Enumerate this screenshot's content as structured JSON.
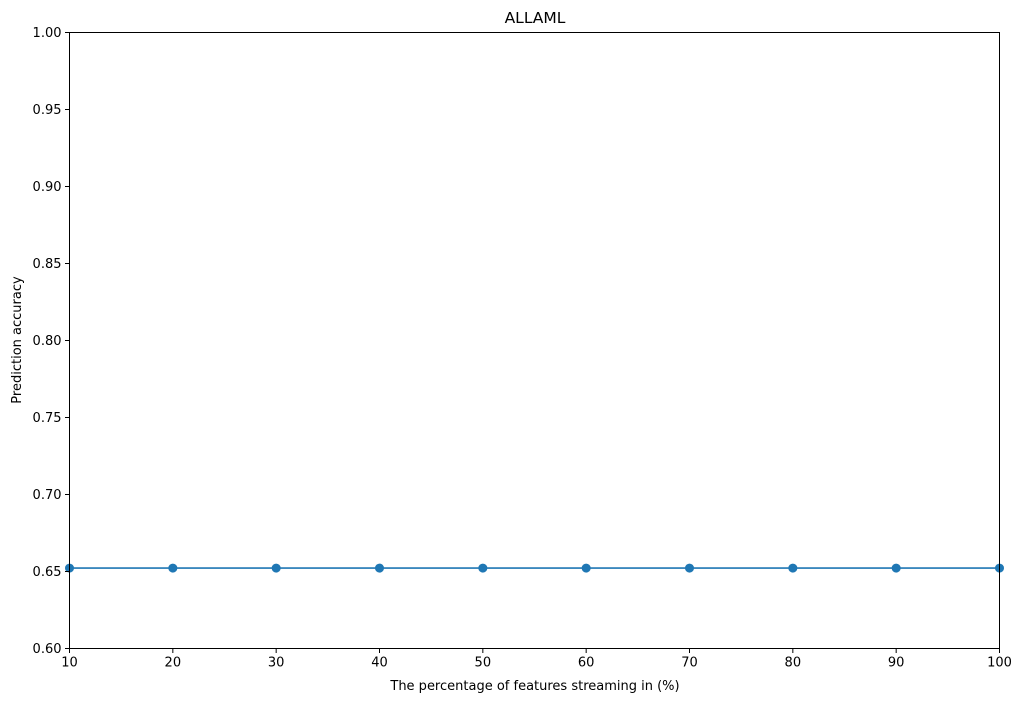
{
  "chart_data": {
    "type": "line",
    "title": "ALLAML",
    "xlabel": "The percentage of features streaming in (%)",
    "ylabel": "Prediction accuracy",
    "x": [
      10,
      20,
      30,
      40,
      50,
      60,
      70,
      80,
      90,
      100
    ],
    "series": [
      {
        "values": [
          0.6522,
          0.6522,
          0.6522,
          0.6522,
          0.6522,
          0.6522,
          0.6522,
          0.6522,
          0.6522,
          0.6522
        ],
        "color": "#1f77b4",
        "marker": "circle"
      }
    ],
    "xlim": [
      10,
      100
    ],
    "ylim": [
      0.6,
      1.0
    ],
    "xticks": [
      10,
      20,
      30,
      40,
      50,
      60,
      70,
      80,
      90,
      100
    ],
    "yticks": [
      "0.60",
      "0.65",
      "0.70",
      "0.75",
      "0.80",
      "0.85",
      "0.90",
      "0.95",
      "1.00"
    ],
    "grid": false,
    "legend": "none"
  }
}
